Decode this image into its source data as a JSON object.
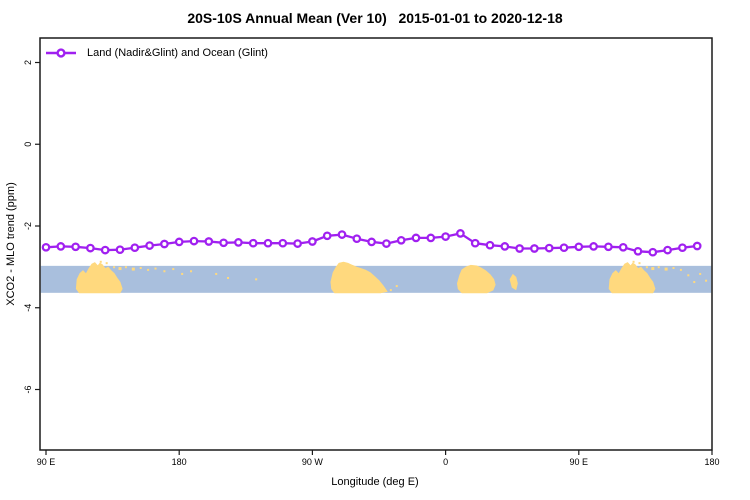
{
  "title": "20S-10S Annual Mean (Ver 10)   2015-01-01 to 2020-12-18",
  "legend": {
    "label": "Land (Nadir&Glint) and Ocean (Glint)"
  },
  "colors": {
    "series": "#a020f0",
    "ocean_band": "#a9bfdd",
    "land": "#ffd97e",
    "frame": "#1a1a1a"
  },
  "chart_data": {
    "type": "line",
    "title": "20S-10S Annual Mean (Ver 10)   2015-01-01 to 2020-12-18",
    "xlabel": "Longitude (deg E)",
    "ylabel": "XCO2 - MLO trend (ppm)",
    "grid": false,
    "legend_position": "top-left-inside",
    "xlim_axis_deg": [
      90,
      540
    ],
    "ylim": [
      -7.5,
      2.6
    ],
    "x_ticks": [
      {
        "lon": 90,
        "label": "90 E"
      },
      {
        "lon": 180,
        "label": "180"
      },
      {
        "lon": 270,
        "label": "90 W"
      },
      {
        "lon": 360,
        "label": "0"
      },
      {
        "lon": 450,
        "label": "90 E"
      },
      {
        "lon": 540,
        "label": "180"
      }
    ],
    "y_ticks": [
      {
        "value": 2,
        "label": "2"
      },
      {
        "value": 0,
        "label": "0"
      },
      {
        "value": -2,
        "label": "-2"
      },
      {
        "value": -4,
        "label": "-4"
      },
      {
        "value": -6,
        "label": "-6"
      }
    ],
    "series": [
      {
        "name": "Land (Nadir&Glint) and Ocean (Glint)",
        "color": "#a020f0",
        "marker": "open-circle",
        "lon_axis_deg": [
          90,
          100,
          110,
          120,
          130,
          140,
          150,
          160,
          170,
          180,
          190,
          200,
          210,
          220,
          230,
          240,
          250,
          260,
          270,
          280,
          290,
          300,
          310,
          320,
          330,
          340,
          350,
          360,
          370,
          380,
          390,
          400,
          410,
          420,
          430,
          440,
          450,
          460,
          470,
          480,
          490,
          500,
          510,
          520,
          530
        ],
        "values": [
          -2.52,
          -2.5,
          -2.51,
          -2.54,
          -2.59,
          -2.58,
          -2.53,
          -2.48,
          -2.44,
          -2.39,
          -2.37,
          -2.38,
          -2.41,
          -2.4,
          -2.42,
          -2.42,
          -2.42,
          -2.43,
          -2.38,
          -2.24,
          -2.21,
          -2.31,
          -2.39,
          -2.43,
          -2.35,
          -2.29,
          -2.29,
          -2.26,
          -2.18,
          -2.42,
          -2.47,
          -2.5,
          -2.55,
          -2.55,
          -2.54,
          -2.53,
          -2.51,
          -2.5,
          -2.51,
          -2.52,
          -2.62,
          -2.64,
          -2.59,
          -2.53,
          -2.49
        ]
      }
    ],
    "map_strip": {
      "description": "Earth land/ocean strip for latitude band 20S-10S",
      "ocean_color": "#a9bfdd",
      "land_color": "#ffd97e",
      "y_top_value": -2.975,
      "y_bottom_value": -3.635,
      "land_shapes": [
        [
          [
            110.5,
            0.85
          ],
          [
            111,
            0.5
          ],
          [
            113,
            0.28
          ],
          [
            115,
            0.18
          ],
          [
            117,
            0.3
          ],
          [
            119,
            0.1
          ],
          [
            121,
            -0.07
          ],
          [
            123,
            -0.12
          ],
          [
            125,
            0.0
          ],
          [
            126.5,
            -0.1
          ],
          [
            128,
            -0.05
          ],
          [
            130,
            0.1
          ],
          [
            132,
            0.05
          ],
          [
            134,
            0.18
          ],
          [
            136,
            0.28
          ],
          [
            138,
            0.45
          ],
          [
            140,
            0.6
          ],
          [
            141.5,
            0.85
          ],
          [
            140,
            1.0
          ],
          [
            112.5,
            1.0
          ]
        ],
        [
          [
            282.5,
            0.6
          ],
          [
            284,
            0.25
          ],
          [
            286,
            0.05
          ],
          [
            288,
            -0.1
          ],
          [
            291,
            -0.14
          ],
          [
            294,
            -0.1
          ],
          [
            297,
            -0.02
          ],
          [
            300,
            0.05
          ],
          [
            303,
            0.1
          ],
          [
            306,
            0.16
          ],
          [
            309,
            0.25
          ],
          [
            312,
            0.4
          ],
          [
            315,
            0.55
          ],
          [
            318,
            0.75
          ],
          [
            320.5,
            0.95
          ],
          [
            316,
            1.0
          ],
          [
            285,
            1.0
          ],
          [
            283,
            0.85
          ]
        ],
        [
          [
            368,
            0.65
          ],
          [
            369.5,
            0.35
          ],
          [
            371,
            0.15
          ],
          [
            374,
            0.04
          ],
          [
            377,
            -0.02
          ],
          [
            381,
            0.0
          ],
          [
            384,
            0.08
          ],
          [
            387,
            0.18
          ],
          [
            390,
            0.32
          ],
          [
            392.5,
            0.5
          ],
          [
            393.5,
            0.7
          ],
          [
            392,
            0.9
          ],
          [
            388,
            1.0
          ],
          [
            371,
            1.0
          ],
          [
            368.5,
            0.85
          ]
        ],
        [
          [
            403.5,
            0.5
          ],
          [
            405.5,
            0.32
          ],
          [
            407.5,
            0.42
          ],
          [
            408.5,
            0.65
          ],
          [
            407.5,
            0.88
          ],
          [
            405,
            0.8
          ]
        ],
        [
          [
            470.5,
            0.85
          ],
          [
            471,
            0.5
          ],
          [
            473,
            0.28
          ],
          [
            475,
            0.18
          ],
          [
            477,
            0.3
          ],
          [
            479,
            0.1
          ],
          [
            481,
            -0.07
          ],
          [
            483,
            -0.12
          ],
          [
            485,
            0.0
          ],
          [
            486.5,
            -0.1
          ],
          [
            488,
            -0.05
          ],
          [
            490,
            0.1
          ],
          [
            492,
            0.05
          ],
          [
            494,
            0.18
          ],
          [
            496,
            0.28
          ],
          [
            498,
            0.45
          ],
          [
            500,
            0.6
          ],
          [
            501.5,
            0.85
          ],
          [
            500,
            1.0
          ],
          [
            472.5,
            1.0
          ]
        ]
      ],
      "islands": [
        [
          127,
          -0.15,
          2
        ],
        [
          131,
          -0.1,
          2
        ],
        [
          136,
          0.05,
          2
        ],
        [
          140,
          0.1,
          3
        ],
        [
          144,
          0.05,
          2
        ],
        [
          149,
          0.12,
          3
        ],
        [
          154,
          0.08,
          2
        ],
        [
          159,
          0.15,
          2
        ],
        [
          164,
          0.1,
          2
        ],
        [
          170,
          0.2,
          2
        ],
        [
          176,
          0.12,
          2
        ],
        [
          182,
          0.3,
          2
        ],
        [
          188,
          0.2,
          2
        ],
        [
          205,
          0.3,
          2
        ],
        [
          213,
          0.45,
          2
        ],
        [
          232,
          0.5,
          2
        ],
        [
          323,
          0.9,
          2
        ],
        [
          327,
          0.75,
          2
        ],
        [
          487,
          -0.15,
          2
        ],
        [
          491,
          -0.1,
          2
        ],
        [
          496,
          0.05,
          2
        ],
        [
          500,
          0.1,
          3
        ],
        [
          504,
          0.05,
          2
        ],
        [
          509,
          0.12,
          3
        ],
        [
          514,
          0.08,
          2
        ],
        [
          519,
          0.15,
          2
        ],
        [
          524,
          0.35,
          2
        ],
        [
          528,
          0.6,
          2
        ],
        [
          532,
          0.3,
          2
        ],
        [
          536,
          0.55,
          2
        ]
      ]
    }
  }
}
